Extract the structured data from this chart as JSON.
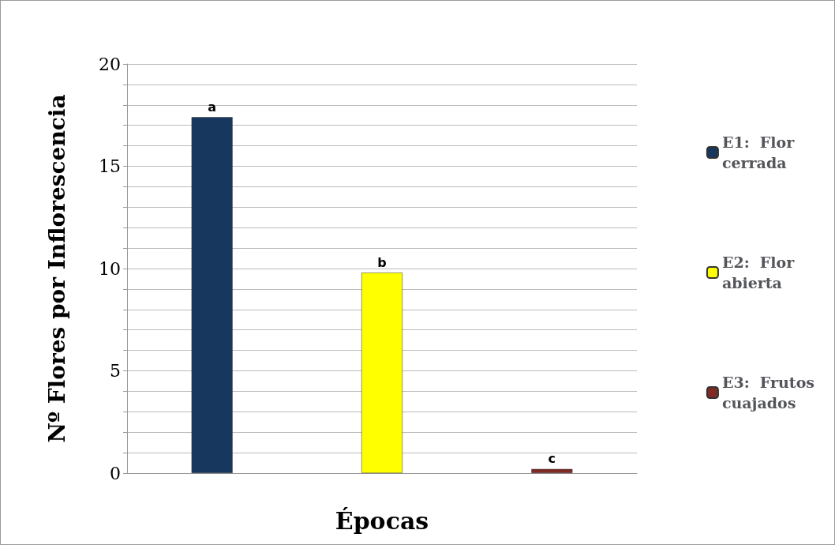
{
  "chart_data": {
    "type": "bar",
    "xlabel": "Épocas",
    "ylabel": "Nº Flores por Inflorescencia",
    "categories": [
      null,
      null,
      null
    ],
    "series": [
      {
        "name": "E1:  Flor cerrada",
        "color": "#17375e",
        "values": [
          17.4,
          null,
          null
        ],
        "value_labels": [
          "a",
          null,
          null
        ]
      },
      {
        "name": "E2:  Flor abierta",
        "color": "#ffff00",
        "values": [
          null,
          9.8,
          null
        ],
        "value_labels": [
          null,
          "b",
          null
        ]
      },
      {
        "name": "E3:  Frutos cuajados",
        "color": "#7f2a25",
        "values": [
          null,
          null,
          0.2
        ],
        "value_labels": [
          null,
          null,
          "c"
        ]
      }
    ],
    "ylim": [
      0,
      20
    ],
    "yticks": [
      0,
      {
        "value": 1,
        "label": null
      },
      {
        "value": 2,
        "label": null
      },
      {
        "value": 3,
        "label": null
      },
      {
        "value": 4,
        "label": null
      },
      5,
      {
        "value": 6,
        "label": null
      },
      {
        "value": 7,
        "label": null
      },
      {
        "value": 8,
        "label": null
      },
      {
        "value": 9,
        "label": null
      },
      10,
      {
        "value": 11,
        "label": null
      },
      {
        "value": 12,
        "label": null
      },
      {
        "value": 13,
        "label": null
      },
      {
        "value": 14,
        "label": null
      },
      15,
      {
        "value": 16,
        "label": null
      },
      {
        "value": 17,
        "label": null
      },
      {
        "value": 18,
        "label": null
      },
      {
        "value": 19,
        "label": null
      },
      20
    ],
    "grid": true,
    "legend": "right"
  }
}
